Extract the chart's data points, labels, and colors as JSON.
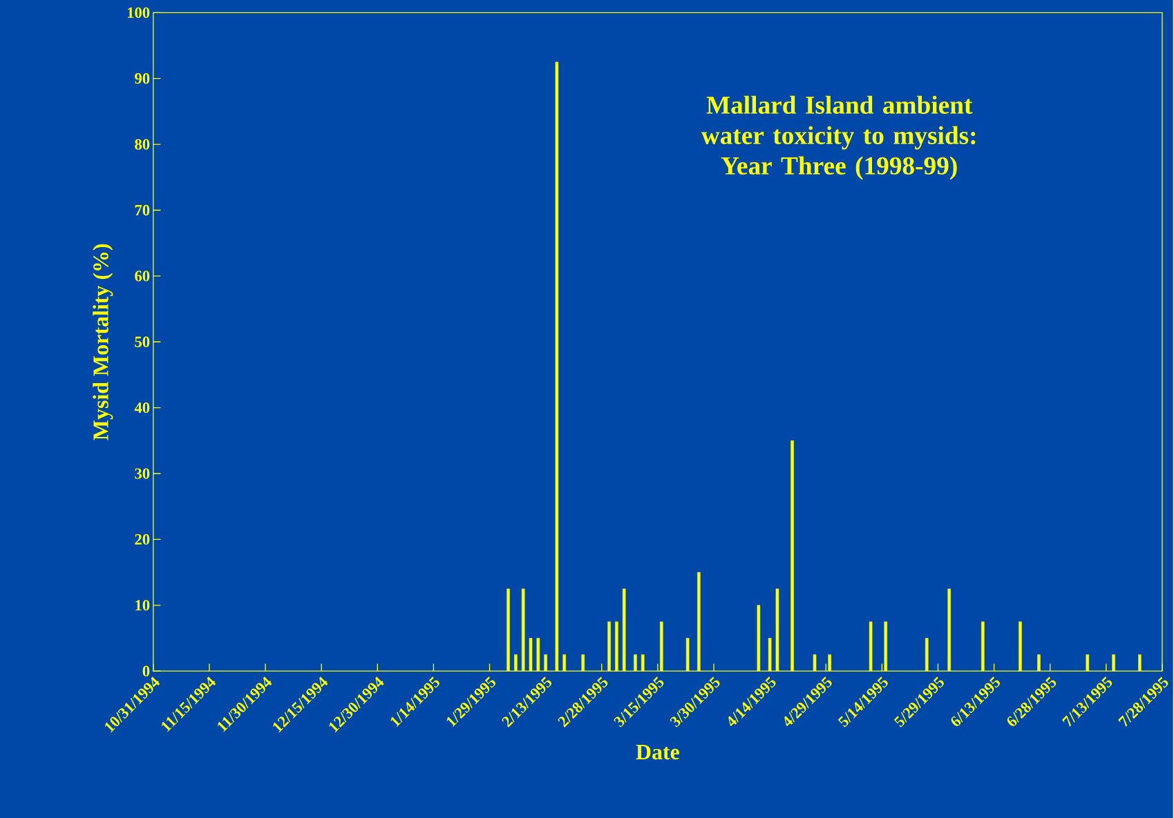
{
  "chart_data": {
    "type": "bar",
    "title": "Mallard Island ambient water toxicity to mysids: Year Three (1998-99)",
    "xlabel": "Date",
    "ylabel": "Mysid Mortality (%)",
    "color": "#ffff00",
    "x": [
      "1995-02-03",
      "1995-02-05",
      "1995-02-07",
      "1995-02-09",
      "1995-02-11",
      "1995-02-13",
      "1995-02-16",
      "1995-02-18",
      "1995-02-23",
      "1995-03-02",
      "1995-03-04",
      "1995-03-06",
      "1995-03-09",
      "1995-03-11",
      "1995-03-16",
      "1995-03-23",
      "1995-03-26",
      "1995-04-11",
      "1995-04-14",
      "1995-04-16",
      "1995-04-20",
      "1995-04-26",
      "1995-04-30",
      "1995-05-11",
      "1995-05-15",
      "1995-05-26",
      "1995-06-01",
      "1995-06-10",
      "1995-06-20",
      "1995-06-25",
      "1995-07-08",
      "1995-07-15",
      "1995-07-22"
    ],
    "values": [
      12.5,
      2.5,
      12.5,
      5,
      5,
      2.5,
      92.5,
      2.5,
      2.5,
      7.5,
      7.5,
      12.5,
      2.5,
      2.5,
      7.5,
      5,
      15,
      10,
      5,
      12.5,
      35,
      2.5,
      2.5,
      7.5,
      7.5,
      5,
      12.5,
      7.5,
      7.5,
      2.5,
      2.5,
      2.5,
      2.5
    ],
    "xlim": [
      "1994-10-31",
      "1995-07-28"
    ],
    "xticks": [
      {
        "value": "1994-10-31",
        "label": "10/31/1994"
      },
      {
        "value": "1994-11-15",
        "label": "11/15/1994"
      },
      {
        "value": "1994-11-30",
        "label": "11/30/1994"
      },
      {
        "value": "1994-12-15",
        "label": "12/15/1994"
      },
      {
        "value": "1994-12-30",
        "label": "12/30/1994"
      },
      {
        "value": "1995-01-14",
        "label": "1/14/1995"
      },
      {
        "value": "1995-01-29",
        "label": "1/29/1995"
      },
      {
        "value": "1995-02-13",
        "label": "2/13/1995"
      },
      {
        "value": "1995-02-28",
        "label": "2/28/1995"
      },
      {
        "value": "1995-03-15",
        "label": "3/15/1995"
      },
      {
        "value": "1995-03-30",
        "label": "3/30/1995"
      },
      {
        "value": "1995-04-14",
        "label": "4/14/1995"
      },
      {
        "value": "1995-04-29",
        "label": "4/29/1995"
      },
      {
        "value": "1995-05-14",
        "label": "5/14/1995"
      },
      {
        "value": "1995-05-29",
        "label": "5/29/1995"
      },
      {
        "value": "1995-06-13",
        "label": "6/13/1995"
      },
      {
        "value": "1995-06-28",
        "label": "6/28/1995"
      },
      {
        "value": "1995-07-13",
        "label": "7/13/1995"
      },
      {
        "value": "1995-07-28",
        "label": "7/28/1995"
      }
    ],
    "ylim": [
      0,
      100
    ],
    "yticks": [
      0,
      10,
      20,
      30,
      40,
      50,
      60,
      70,
      80,
      90,
      100
    ]
  }
}
